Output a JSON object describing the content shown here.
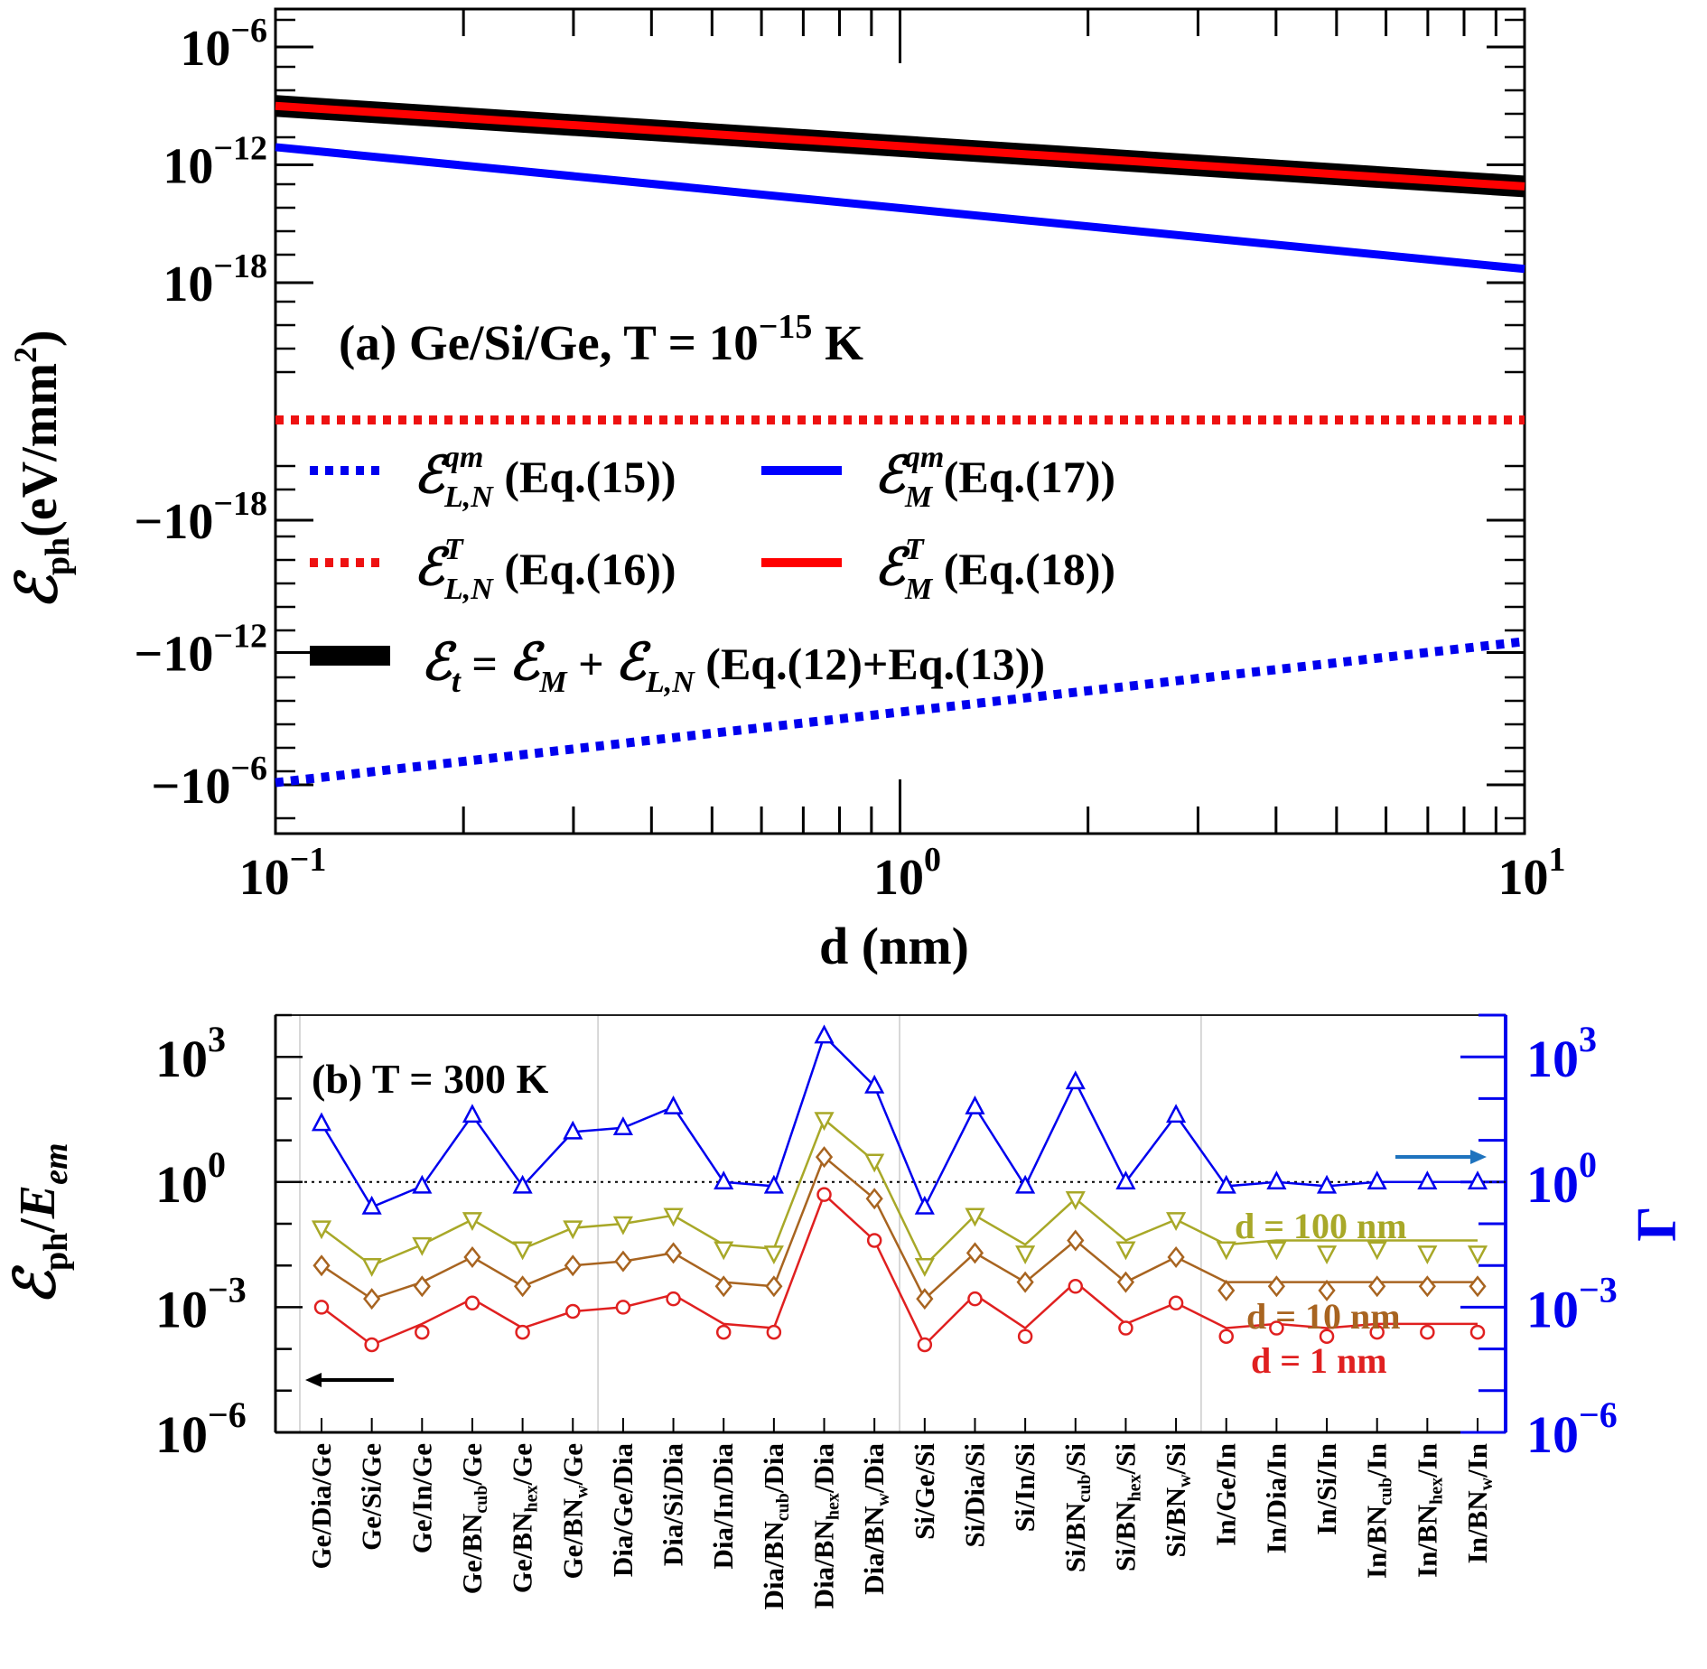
{
  "chart_data": [
    {
      "type": "line",
      "panel": "(a)",
      "title": "(a) Ge/Si/Ge, T = 10^-15 K",
      "title_parts": {
        "prefix": "(a) Ge/Si/Ge, T = 10",
        "exp": "−15",
        "suffix": " K"
      },
      "xlabel": "d (nm)",
      "ylabel_parts": {
        "sym": "ℰ",
        "sub": "ph",
        "unit": "(eV/mm",
        "unit_exp": "2",
        "unit_close": ")"
      },
      "xscale": "log",
      "xlim": [
        0.1,
        10
      ],
      "yscale": "symlog",
      "x_ticks": [
        {
          "value": 0.1,
          "base": "10",
          "exp": "−1"
        },
        {
          "value": 1,
          "base": "10",
          "exp": "0"
        },
        {
          "value": 10,
          "base": "10",
          "exp": "1"
        }
      ],
      "y_ticks": [
        {
          "log": -6,
          "sign": 1,
          "base": "10",
          "exp": "−6"
        },
        {
          "log": -12,
          "sign": 1,
          "base": "10",
          "exp": "−12"
        },
        {
          "log": -18,
          "sign": 1,
          "base": "10",
          "exp": "−18"
        },
        {
          "log": -18,
          "sign": -1,
          "base": "−10",
          "exp": "−18"
        },
        {
          "log": -12,
          "sign": -1,
          "base": "−10",
          "exp": "−12"
        },
        {
          "log": -6,
          "sign": -1,
          "base": "−10",
          "exp": "−6"
        }
      ],
      "series": [
        {
          "name": "E_L,N^qm (Eq.(15))",
          "style": "dotted",
          "color": "#0000ee",
          "sign": -1,
          "points": [
            {
              "x": 0.1,
              "log": -6.1
            },
            {
              "x": 10,
              "log": -12.5
            }
          ]
        },
        {
          "name": "E_M^qm (Eq.(17))",
          "style": "solid",
          "color": "#0000ff",
          "sign": 1,
          "points": [
            {
              "x": 0.1,
              "log": -11.1
            },
            {
              "x": 10,
              "log": -17.3
            }
          ]
        },
        {
          "name": "E_L,N^T (Eq.(16))",
          "style": "dotted",
          "color": "#ee1111",
          "sign": 0,
          "points": [
            {
              "x": 0.1,
              "log": null
            },
            {
              "x": 10,
              "log": null
            }
          ]
        },
        {
          "name": "E_t = E_M + E_L,N (Eq.(12)+Eq.(13))",
          "style": "thick",
          "color": "#000000",
          "sign": 1,
          "points": [
            {
              "x": 0.1,
              "log": -9.0
            },
            {
              "x": 10,
              "log": -13.1
            }
          ]
        },
        {
          "name": "E_M^T (Eq.(18))",
          "style": "solid",
          "color": "#ff0000",
          "sign": 1,
          "points": [
            {
              "x": 0.1,
              "log": -9.0
            },
            {
              "x": 10,
              "log": -13.1
            }
          ]
        }
      ],
      "legend": [
        {
          "sym": "ℰ",
          "sub": "L,N",
          "sup": "qm",
          "eq": " (Eq.(15))",
          "style": "dotted",
          "color": "#0000ee"
        },
        {
          "sym": "ℰ",
          "sub": "M",
          "sup": "qm",
          "eq": " (Eq.(17))",
          "style": "solid",
          "color": "#0000ff"
        },
        {
          "sym": "ℰ",
          "sub": "L,N",
          "sup": "T",
          "eq": " (Eq.(16))",
          "style": "dotted",
          "color": "#ee1111"
        },
        {
          "sym": "ℰ",
          "sub": "M",
          "sup": "T",
          "eq": " (Eq.(18))",
          "style": "solid",
          "color": "#ff0000"
        },
        {
          "sym": "ℰ",
          "sub": "t",
          "mid1": " = ",
          "sym2": "ℰ",
          "sub2": "M",
          "mid2": " + ",
          "sym3": "ℰ",
          "sub3": "L,N",
          "eq": " (Eq.(12)+Eq.(13))",
          "style": "thick",
          "color": "#000000"
        }
      ]
    },
    {
      "type": "line",
      "panel": "(b)",
      "title": "(b) T = 300 K",
      "ylabel_left_parts": {
        "sym": "ℰ",
        "sub": "ph",
        "slash": "/",
        "den": "E",
        "den_sub": "em"
      },
      "ylabel_right": "Γ",
      "yscale": "log",
      "ylim_log": [
        -6,
        4
      ],
      "y_ticks": [
        {
          "log": 3,
          "base": "10",
          "exp": "3"
        },
        {
          "log": 0,
          "base": "10",
          "exp": "0"
        },
        {
          "log": -3,
          "base": "10",
          "exp": "−3"
        },
        {
          "log": -6,
          "base": "10",
          "exp": "−6"
        }
      ],
      "categories": [
        "Ge/Dia/Ge",
        "Ge/Si/Ge",
        "Ge/In/Ge",
        "Ge/BNcub/Ge",
        "Ge/BNhex/Ge",
        "Ge/BNw/Ge",
        "Dia/Ge/Dia",
        "Dia/Si/Dia",
        "Dia/In/Dia",
        "Dia/BNcub/Dia",
        "Dia/BNhex/Dia",
        "Dia/BNw/Dia",
        "Si/Ge/Si",
        "Si/Dia/Si",
        "Si/In/Si",
        "Si/BNcub/Si",
        "Si/BNhex/Si",
        "Si/BNw/Si",
        "In/Ge/In",
        "In/Dia/In",
        "In/Si/In",
        "In/BNcub/In",
        "In/BNhex/In",
        "In/BNw/In"
      ],
      "category_labels": [
        {
          "a": "Ge/Dia/Ge",
          "sub": "",
          "b": ""
        },
        {
          "a": "Ge/Si/Ge",
          "sub": "",
          "b": ""
        },
        {
          "a": "Ge/In/Ge",
          "sub": "",
          "b": ""
        },
        {
          "a": "Ge/BN",
          "sub": "cub",
          "b": "/Ge"
        },
        {
          "a": "Ge/BN",
          "sub": "hex",
          "b": "/Ge"
        },
        {
          "a": "Ge/BN",
          "sub": "w",
          "b": "/Ge"
        },
        {
          "a": "Dia/Ge/Dia",
          "sub": "",
          "b": ""
        },
        {
          "a": "Dia/Si/Dia",
          "sub": "",
          "b": ""
        },
        {
          "a": "Dia/In/Dia",
          "sub": "",
          "b": ""
        },
        {
          "a": "Dia/BN",
          "sub": "cub",
          "b": "/Dia"
        },
        {
          "a": "Dia/BN",
          "sub": "hex",
          "b": "/Dia"
        },
        {
          "a": "Dia/BN",
          "sub": "w",
          "b": "/Dia"
        },
        {
          "a": "Si/Ge/Si",
          "sub": "",
          "b": ""
        },
        {
          "a": "Si/Dia/Si",
          "sub": "",
          "b": ""
        },
        {
          "a": "Si/In/Si",
          "sub": "",
          "b": ""
        },
        {
          "a": "Si/BN",
          "sub": "cub",
          "b": "/Si"
        },
        {
          "a": "Si/BN",
          "sub": "hex",
          "b": "/Si"
        },
        {
          "a": "Si/BN",
          "sub": "w",
          "b": "/Si"
        },
        {
          "a": "In/Ge/In",
          "sub": "",
          "b": ""
        },
        {
          "a": "In/Dia/In",
          "sub": "",
          "b": ""
        },
        {
          "a": "In/Si/In",
          "sub": "",
          "b": ""
        },
        {
          "a": "In/BN",
          "sub": "cub",
          "b": "/In"
        },
        {
          "a": "In/BN",
          "sub": "hex",
          "b": "/In"
        },
        {
          "a": "In/BN",
          "sub": "w",
          "b": "/In"
        }
      ],
      "series": [
        {
          "name": "Γ",
          "axis": "right",
          "color": "#0000ee",
          "marker": "triangle-up",
          "line_log": [
            1.4,
            -0.6,
            -0.1,
            1.6,
            -0.1,
            1.2,
            1.3,
            1.8,
            0.0,
            -0.1,
            3.5,
            2.3,
            -0.6,
            1.8,
            -0.1,
            2.4,
            0.0,
            1.6,
            -0.1,
            0.0,
            -0.1,
            0.0,
            0.0,
            0.0
          ],
          "marker_log": [
            1.4,
            -0.6,
            -0.1,
            1.6,
            -0.1,
            1.2,
            1.3,
            1.8,
            0.0,
            -0.1,
            3.5,
            2.3,
            -0.6,
            1.8,
            -0.1,
            2.4,
            0.0,
            1.6,
            -0.1,
            0.0,
            -0.1,
            0.0,
            0.0,
            0.0
          ]
        },
        {
          "name": "d = 100 nm",
          "axis": "left",
          "color": "#a8a828",
          "marker": "triangle-down",
          "line_log": [
            -1.1,
            -2.0,
            -1.5,
            -0.9,
            -1.6,
            -1.1,
            -1.0,
            -0.8,
            -1.5,
            -1.6,
            1.5,
            0.5,
            -2.0,
            -0.8,
            -1.5,
            -0.4,
            -1.4,
            -0.9,
            -1.5,
            -1.4,
            -1.4,
            -1.4,
            -1.4,
            -1.4
          ],
          "marker_log": [
            -1.1,
            -2.0,
            -1.5,
            -0.9,
            -1.6,
            -1.1,
            -1.0,
            -0.8,
            -1.6,
            -1.7,
            1.5,
            0.5,
            -2.0,
            -0.8,
            -1.7,
            -0.4,
            -1.6,
            -0.9,
            -1.6,
            -1.6,
            -1.7,
            -1.6,
            -1.7,
            -1.7
          ]
        },
        {
          "name": "d = 10 nm",
          "axis": "left",
          "color": "#a86420",
          "marker": "diamond",
          "line_log": [
            -2.0,
            -2.8,
            -2.4,
            -1.8,
            -2.5,
            -2.0,
            -1.9,
            -1.7,
            -2.4,
            -2.5,
            0.6,
            -0.4,
            -2.8,
            -1.7,
            -2.4,
            -1.4,
            -2.4,
            -1.8,
            -2.4,
            -2.4,
            -2.4,
            -2.4,
            -2.4,
            -2.4
          ],
          "marker_log": [
            -2.0,
            -2.8,
            -2.5,
            -1.8,
            -2.5,
            -2.0,
            -1.9,
            -1.7,
            -2.5,
            -2.5,
            0.6,
            -0.4,
            -2.8,
            -1.7,
            -2.4,
            -1.4,
            -2.4,
            -1.8,
            -2.6,
            -2.5,
            -2.6,
            -2.5,
            -2.5,
            -2.5
          ]
        },
        {
          "name": "d = 1 nm",
          "axis": "left",
          "color": "#e02020",
          "marker": "circle",
          "line_log": [
            -3.0,
            -3.9,
            -3.4,
            -2.8,
            -3.5,
            -3.1,
            -3.0,
            -2.7,
            -3.4,
            -3.5,
            -0.3,
            -1.4,
            -3.9,
            -2.7,
            -3.5,
            -2.4,
            -3.4,
            -2.9,
            -3.5,
            -3.4,
            -3.5,
            -3.4,
            -3.4,
            -3.4
          ],
          "marker_log": [
            -3.0,
            -3.9,
            -3.6,
            -2.9,
            -3.6,
            -3.1,
            -3.0,
            -2.8,
            -3.6,
            -3.6,
            -0.3,
            -1.4,
            -3.9,
            -2.8,
            -3.7,
            -2.5,
            -3.5,
            -2.9,
            -3.7,
            -3.5,
            -3.7,
            -3.6,
            -3.6,
            -3.6
          ]
        }
      ],
      "reference_line": {
        "log": 0,
        "style": "dotted",
        "color": "#000000"
      },
      "annotations": [
        {
          "text": "d = 100 nm",
          "color": "#a8a828"
        },
        {
          "text": "d = 10 nm",
          "color": "#a86420"
        },
        {
          "text": "d = 1 nm",
          "color": "#e02020"
        }
      ],
      "axis_colors": {
        "left": "#000000",
        "right": "#0000ee",
        "right_arrow": "#1e73be"
      }
    }
  ]
}
